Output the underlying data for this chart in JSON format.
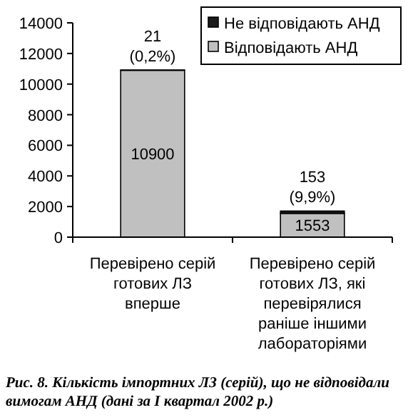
{
  "chart_data": {
    "type": "bar",
    "stacked": true,
    "categories": [
      "Перевірено серій готових ЛЗ вперше",
      "Перевірено серій готових ЛЗ, які перевірялися раніше іншими лабораторіями"
    ],
    "series": [
      {
        "name": "Відповідають АНД",
        "color": "#c0c0c0",
        "values": [
          10900,
          1553
        ],
        "value_labels": [
          "10900",
          "1553"
        ]
      },
      {
        "name": "Не відповідають АНД",
        "color": "#1a1a1a",
        "values": [
          21,
          153
        ],
        "value_labels": [
          "21 (0,2%)",
          "153 (9,9%)"
        ]
      }
    ],
    "ylim": [
      0,
      14000
    ],
    "yticks": [
      0,
      2000,
      4000,
      6000,
      8000,
      10000,
      12000,
      14000
    ],
    "grid": false,
    "legend": "top right",
    "annotations": [
      "Рис. 8. Кількість імпортних ЛЗ (серій), що не відповідали вимогам АНД  (дані за I квартал 2002 р.)"
    ]
  }
}
